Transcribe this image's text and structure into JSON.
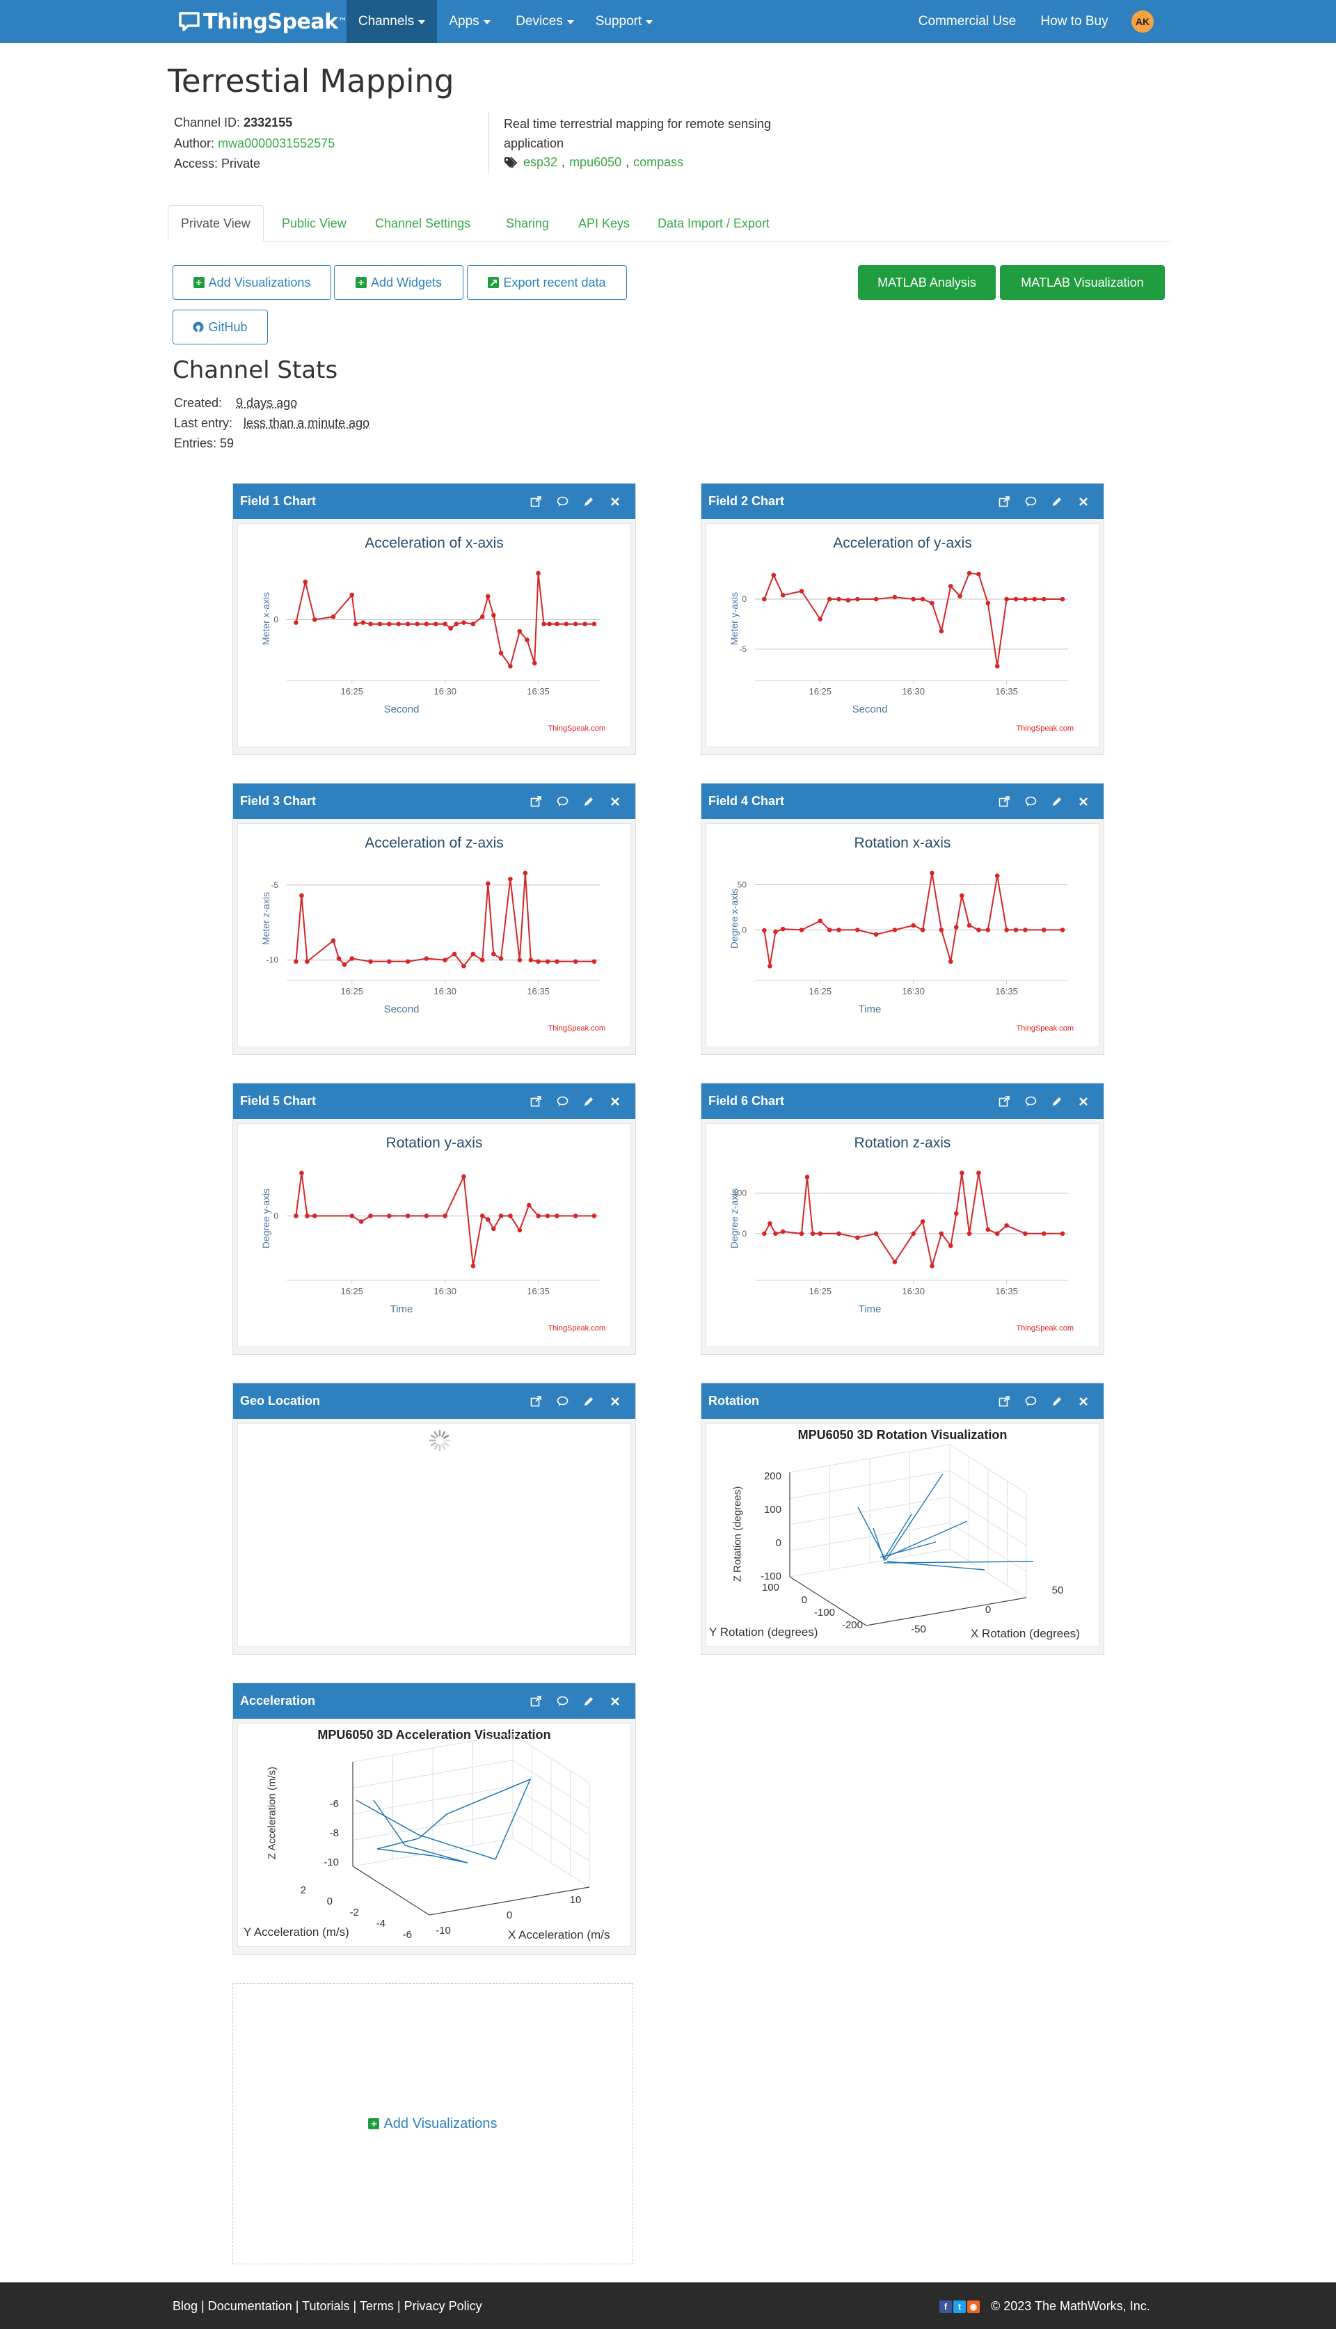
{
  "nav": {
    "brand": "ThingSpeak",
    "brand_tm": "™",
    "items": [
      "Channels",
      "Apps",
      "Devices",
      "Support"
    ],
    "right": [
      "Commercial Use",
      "How to Buy"
    ],
    "avatar": "AK"
  },
  "channel": {
    "title": "Terrestial Mapping",
    "id_label": "Channel ID:",
    "id_value": "2332155",
    "author_label": "Author:",
    "author_value": "mwa0000031552575",
    "access_label": "Access:",
    "access_value": "Private",
    "description": "Real time terrestrial mapping for remote sensing application",
    "tags": [
      "esp32",
      "mpu6050",
      "compass"
    ]
  },
  "tabs": [
    "Private View",
    "Public View",
    "Channel Settings",
    "Sharing",
    "API Keys",
    "Data Import / Export"
  ],
  "buttons": {
    "add_visualizations": "Add Visualizations",
    "add_widgets": "Add Widgets",
    "export_recent": "Export recent data",
    "matlab_analysis": "MATLAB Analysis",
    "matlab_visualization": "MATLAB Visualization",
    "github": "GitHub"
  },
  "stats": {
    "heading": "Channel Stats",
    "created_label": "Created:",
    "created_value": "9 days ago",
    "last_entry_label": "Last entry:",
    "last_entry_value": "less than a minute ago",
    "entries_label": "Entries:",
    "entries_value": "59"
  },
  "widgets": {
    "field1": {
      "header": "Field 1 Chart",
      "title": "Acceleration of x-axis",
      "ylabel": "Meter x-axis",
      "xlabel": "Second",
      "credit": "ThingSpeak.com"
    },
    "field2": {
      "header": "Field 2 Chart",
      "title": "Acceleration of y-axis",
      "ylabel": "Meter y-axis",
      "xlabel": "Second",
      "credit": "ThingSpeak.com"
    },
    "field3": {
      "header": "Field 3 Chart",
      "title": "Acceleration of z-axis",
      "ylabel": "Meter z-axis",
      "xlabel": "Second",
      "credit": "ThingSpeak.com"
    },
    "field4": {
      "header": "Field 4 Chart",
      "title": "Rotation x-axis",
      "ylabel": "Degree x-axis",
      "xlabel": "Time",
      "credit": "ThingSpeak.com"
    },
    "field5": {
      "header": "Field 5 Chart",
      "title": "Rotation y-axis",
      "ylabel": "Degree y-axis",
      "xlabel": "Time",
      "credit": "ThingSpeak.com"
    },
    "field6": {
      "header": "Field 6 Chart",
      "title": "Rotation z-axis",
      "ylabel": "Degree z-axis",
      "xlabel": "Time",
      "credit": "ThingSpeak.com"
    },
    "geo": {
      "header": "Geo Location"
    },
    "rotation": {
      "header": "Rotation",
      "title": "MPU6050 3D Rotation Visualization",
      "zlabel": "Z Rotation (degrees)",
      "ylabel": "Y Rotation (degrees)",
      "xlabel": "X Rotation (degrees)",
      "zticks": [
        "200",
        "100",
        "0",
        "-100"
      ],
      "yticks": [
        "100",
        "0",
        "-100",
        "-200"
      ],
      "xticks": [
        "-50",
        "0",
        "50"
      ]
    },
    "acceleration": {
      "header": "Acceleration",
      "title": "MPU6050 3D Acceleration Visualization",
      "zlabel": "Z Acceleration (m/s)",
      "ylabel": "Y Acceleration (m/s)",
      "xlabel": "X Acceleration (m/s",
      "zticks": [
        "-6",
        "-8",
        "-10"
      ],
      "yticks": [
        "2",
        "0",
        "-2",
        "-4",
        "-6"
      ],
      "xticks": [
        "-10",
        "0",
        "10"
      ]
    }
  },
  "add_visualizations_placeholder": "Add Visualizations",
  "footer": {
    "links": [
      "Blog",
      "Documentation",
      "Tutorials",
      "Terms",
      "Privacy Policy"
    ],
    "copyright": "© 2023 The MathWorks, Inc."
  },
  "colors": {
    "nav": "#2f80be",
    "line": "#d62728",
    "accent_green": "#1f9d3f",
    "link": "#3aa84a"
  },
  "chart_data": [
    {
      "type": "line",
      "title": "Acceleration of x-axis",
      "xlabel": "Second",
      "ylabel": "Meter x-axis",
      "xticks": [
        "16:25",
        "16:30",
        "16:35"
      ],
      "yticks": [
        "0"
      ],
      "x": [
        "16:22",
        "16:22.5",
        "16:23",
        "16:24",
        "16:25",
        "16:25.2",
        "16:25.6",
        "16:26",
        "16:26.5",
        "16:27",
        "16:27.5",
        "16:28",
        "16:28.5",
        "16:29",
        "16:29.5",
        "16:30",
        "16:30.3",
        "16:30.6",
        "16:31",
        "16:31.5",
        "16:32",
        "16:32.3",
        "16:32.6",
        "16:33",
        "16:33.5",
        "16:34",
        "16:34.4",
        "16:34.8",
        "16:35",
        "16:35.3",
        "16:35.6",
        "16:36",
        "16:36.5",
        "16:37",
        "16:37.5",
        "16:38"
      ],
      "y": [
        -0.2,
        2.6,
        0.0,
        0.2,
        1.7,
        -0.3,
        -0.2,
        -0.3,
        -0.3,
        -0.3,
        -0.3,
        -0.3,
        -0.3,
        -0.3,
        -0.3,
        -0.3,
        -0.6,
        -0.3,
        -0.2,
        -0.3,
        0.2,
        1.6,
        0.3,
        -2.3,
        -3.2,
        -0.8,
        -1.4,
        -3.0,
        3.2,
        -0.3,
        -0.3,
        -0.3,
        -0.3,
        -0.3,
        -0.3,
        -0.3
      ]
    },
    {
      "type": "line",
      "title": "Acceleration of y-axis",
      "xlabel": "Second",
      "ylabel": "Meter y-axis",
      "xticks": [
        "16:25",
        "16:30",
        "16:35"
      ],
      "yticks": [
        "0",
        "-5"
      ],
      "x": [
        "16:22",
        "16:22.5",
        "16:23",
        "16:24",
        "16:25",
        "16:25.5",
        "16:26",
        "16:26.5",
        "16:27",
        "16:28",
        "16:29",
        "16:30",
        "16:30.5",
        "16:31",
        "16:31.5",
        "16:32",
        "16:32.5",
        "16:33",
        "16:33.5",
        "16:34",
        "16:34.5",
        "16:35",
        "16:35.5",
        "16:36",
        "16:36.5",
        "16:37",
        "16:38"
      ],
      "y": [
        0.0,
        2.4,
        0.4,
        0.8,
        -2.0,
        0.0,
        0.0,
        -0.1,
        0.0,
        0.0,
        0.2,
        0.0,
        0.0,
        -0.4,
        -3.2,
        1.3,
        0.3,
        2.6,
        2.5,
        -0.4,
        -6.7,
        0.0,
        0.0,
        0.0,
        0.0,
        0.0,
        0.0
      ]
    },
    {
      "type": "line",
      "title": "Acceleration of z-axis",
      "xlabel": "Second",
      "ylabel": "Meter z-axis",
      "xticks": [
        "16:25",
        "16:30",
        "16:35"
      ],
      "yticks": [
        "-5",
        "-10"
      ],
      "x": [
        "16:22",
        "16:22.3",
        "16:22.6",
        "16:24",
        "16:24.3",
        "16:24.6",
        "16:25",
        "16:26",
        "16:27",
        "16:28",
        "16:29",
        "16:30",
        "16:30.5",
        "16:31",
        "16:31.5",
        "16:32",
        "16:32.3",
        "16:32.6",
        "16:33",
        "16:33.5",
        "16:34",
        "16:34.3",
        "16:34.6",
        "16:35",
        "16:35.5",
        "16:36",
        "16:37",
        "16:38"
      ],
      "y": [
        -10.1,
        -5.7,
        -10.1,
        -8.7,
        -9.9,
        -10.3,
        -9.9,
        -10.1,
        -10.1,
        -10.1,
        -9.9,
        -10.0,
        -9.6,
        -10.4,
        -9.6,
        -10.0,
        -4.9,
        -9.6,
        -9.9,
        -4.6,
        -10.0,
        -4.2,
        -10.0,
        -10.1,
        -10.1,
        -10.1,
        -10.1,
        -10.1
      ]
    },
    {
      "type": "line",
      "title": "Rotation x-axis",
      "xlabel": "Time",
      "ylabel": "Degree x-axis",
      "xticks": [
        "16:25",
        "16:30",
        "16:35"
      ],
      "yticks": [
        "50",
        "0"
      ],
      "x": [
        "16:22",
        "16:22.3",
        "16:22.6",
        "16:23",
        "16:24",
        "16:25",
        "16:25.5",
        "16:26",
        "16:27",
        "16:28",
        "16:29",
        "16:30",
        "16:30.5",
        "16:31",
        "16:31.5",
        "16:32",
        "16:32.3",
        "16:32.6",
        "16:33",
        "16:33.5",
        "16:34",
        "16:34.5",
        "16:35",
        "16:35.5",
        "16:36",
        "16:37",
        "16:38"
      ],
      "y": [
        -0.5,
        -40.0,
        -2.0,
        1.0,
        0.0,
        10.0,
        0.0,
        0.0,
        0.0,
        -5.0,
        0.0,
        5.0,
        0.0,
        63.0,
        0.0,
        -35.0,
        3.0,
        38.0,
        5.0,
        0.0,
        0.0,
        60.0,
        0.0,
        0.0,
        0.0,
        0.0,
        0.0
      ]
    },
    {
      "type": "line",
      "title": "Rotation y-axis",
      "xlabel": "Time",
      "ylabel": "Degree y-axis",
      "xticks": [
        "16:25",
        "16:30",
        "16:35"
      ],
      "yticks": [
        "0"
      ],
      "x": [
        "16:22",
        "16:22.3",
        "16:22.6",
        "16:23",
        "16:25",
        "16:25.5",
        "16:26",
        "16:27",
        "16:28",
        "16:29",
        "16:30",
        "16:31",
        "16:31.5",
        "16:32",
        "16:32.3",
        "16:32.6",
        "16:33",
        "16:33.5",
        "16:34",
        "16:34.5",
        "16:35",
        "16:35.5",
        "16:36",
        "16:37",
        "16:38"
      ],
      "y": [
        0,
        60,
        0,
        0,
        0,
        -8,
        0,
        0,
        0,
        0,
        0,
        55,
        -70,
        0,
        -5,
        -18,
        0,
        0,
        -20,
        15,
        0,
        0,
        0,
        0,
        0
      ]
    },
    {
      "type": "line",
      "title": "Rotation z-axis",
      "xlabel": "Time",
      "ylabel": "Degree z-axis",
      "xticks": [
        "16:25",
        "16:30",
        "16:35"
      ],
      "yticks": [
        "100",
        "0"
      ],
      "x": [
        "16:22",
        "16:22.3",
        "16:22.6",
        "16:23",
        "16:24",
        "16:24.3",
        "16:24.6",
        "16:25",
        "16:26",
        "16:27",
        "16:28",
        "16:29",
        "16:30",
        "16:30.5",
        "16:31",
        "16:31.5",
        "16:32",
        "16:32.3",
        "16:32.6",
        "16:33",
        "16:33.5",
        "16:34",
        "16:34.5",
        "16:35",
        "16:36",
        "16:37",
        "16:38"
      ],
      "y": [
        0,
        25,
        0,
        5,
        0,
        140,
        0,
        0,
        0,
        -10,
        0,
        -70,
        0,
        30,
        -80,
        0,
        -30,
        50,
        150,
        0,
        150,
        10,
        0,
        20,
        0,
        0,
        0
      ]
    }
  ]
}
